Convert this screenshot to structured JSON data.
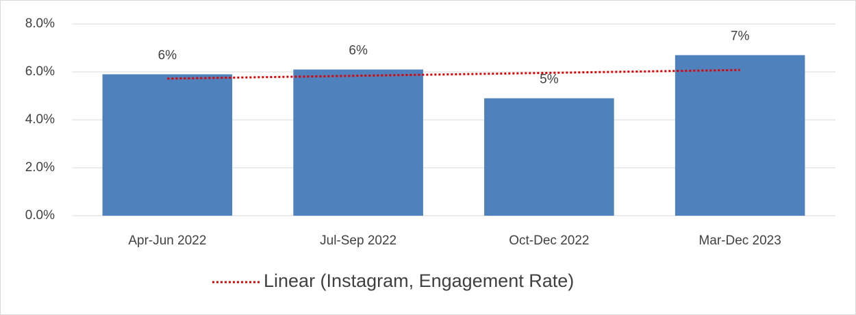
{
  "chart_data": {
    "type": "bar",
    "categories": [
      "Apr-Jun 2022",
      "Jul-Sep 2022",
      "Oct-Dec 2022",
      "Mar-Dec 2023"
    ],
    "values": [
      5.9,
      6.1,
      4.9,
      6.7
    ],
    "value_labels": [
      "6%",
      "6%",
      "5%",
      "7%"
    ],
    "color": "#4f81bd",
    "trendline": {
      "name": "Linear (Instagram, Engagement Rate)",
      "color": "#e00000",
      "values": [
        5.72,
        5.84,
        5.96,
        6.08
      ]
    },
    "ylim": [
      0,
      8
    ],
    "yticks": [
      {
        "value": 0,
        "label": "0.0%"
      },
      {
        "value": 2,
        "label": "2.0%"
      },
      {
        "value": 4,
        "label": "4.0%"
      },
      {
        "value": 6,
        "label": "6.0%"
      },
      {
        "value": 8,
        "label": "8.0%"
      }
    ],
    "grid": true,
    "legend": "bottom"
  }
}
